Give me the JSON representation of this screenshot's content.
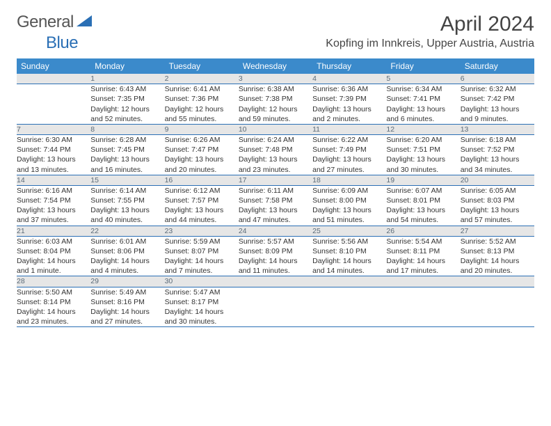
{
  "logo": {
    "text_general": "General",
    "text_blue": "Blue"
  },
  "title": "April 2024",
  "location": "Kopfing im Innkreis, Upper Austria, Austria",
  "colors": {
    "header_bg": "#3b8acb",
    "header_text": "#ffffff",
    "daynum_bg": "#e6e6e6",
    "daynum_text": "#5a6a78",
    "row_divider": "#2a6fb5",
    "logo_blue": "#2a6fb5",
    "logo_gray": "#555555",
    "page_bg": "#ffffff"
  },
  "day_headers": [
    "Sunday",
    "Monday",
    "Tuesday",
    "Wednesday",
    "Thursday",
    "Friday",
    "Saturday"
  ],
  "weeks": [
    [
      null,
      {
        "n": "1",
        "sr": "Sunrise: 6:43 AM",
        "ss": "Sunset: 7:35 PM",
        "dl1": "Daylight: 12 hours",
        "dl2": "and 52 minutes."
      },
      {
        "n": "2",
        "sr": "Sunrise: 6:41 AM",
        "ss": "Sunset: 7:36 PM",
        "dl1": "Daylight: 12 hours",
        "dl2": "and 55 minutes."
      },
      {
        "n": "3",
        "sr": "Sunrise: 6:38 AM",
        "ss": "Sunset: 7:38 PM",
        "dl1": "Daylight: 12 hours",
        "dl2": "and 59 minutes."
      },
      {
        "n": "4",
        "sr": "Sunrise: 6:36 AM",
        "ss": "Sunset: 7:39 PM",
        "dl1": "Daylight: 13 hours",
        "dl2": "and 2 minutes."
      },
      {
        "n": "5",
        "sr": "Sunrise: 6:34 AM",
        "ss": "Sunset: 7:41 PM",
        "dl1": "Daylight: 13 hours",
        "dl2": "and 6 minutes."
      },
      {
        "n": "6",
        "sr": "Sunrise: 6:32 AM",
        "ss": "Sunset: 7:42 PM",
        "dl1": "Daylight: 13 hours",
        "dl2": "and 9 minutes."
      }
    ],
    [
      {
        "n": "7",
        "sr": "Sunrise: 6:30 AM",
        "ss": "Sunset: 7:44 PM",
        "dl1": "Daylight: 13 hours",
        "dl2": "and 13 minutes."
      },
      {
        "n": "8",
        "sr": "Sunrise: 6:28 AM",
        "ss": "Sunset: 7:45 PM",
        "dl1": "Daylight: 13 hours",
        "dl2": "and 16 minutes."
      },
      {
        "n": "9",
        "sr": "Sunrise: 6:26 AM",
        "ss": "Sunset: 7:47 PM",
        "dl1": "Daylight: 13 hours",
        "dl2": "and 20 minutes."
      },
      {
        "n": "10",
        "sr": "Sunrise: 6:24 AM",
        "ss": "Sunset: 7:48 PM",
        "dl1": "Daylight: 13 hours",
        "dl2": "and 23 minutes."
      },
      {
        "n": "11",
        "sr": "Sunrise: 6:22 AM",
        "ss": "Sunset: 7:49 PM",
        "dl1": "Daylight: 13 hours",
        "dl2": "and 27 minutes."
      },
      {
        "n": "12",
        "sr": "Sunrise: 6:20 AM",
        "ss": "Sunset: 7:51 PM",
        "dl1": "Daylight: 13 hours",
        "dl2": "and 30 minutes."
      },
      {
        "n": "13",
        "sr": "Sunrise: 6:18 AM",
        "ss": "Sunset: 7:52 PM",
        "dl1": "Daylight: 13 hours",
        "dl2": "and 34 minutes."
      }
    ],
    [
      {
        "n": "14",
        "sr": "Sunrise: 6:16 AM",
        "ss": "Sunset: 7:54 PM",
        "dl1": "Daylight: 13 hours",
        "dl2": "and 37 minutes."
      },
      {
        "n": "15",
        "sr": "Sunrise: 6:14 AM",
        "ss": "Sunset: 7:55 PM",
        "dl1": "Daylight: 13 hours",
        "dl2": "and 40 minutes."
      },
      {
        "n": "16",
        "sr": "Sunrise: 6:12 AM",
        "ss": "Sunset: 7:57 PM",
        "dl1": "Daylight: 13 hours",
        "dl2": "and 44 minutes."
      },
      {
        "n": "17",
        "sr": "Sunrise: 6:11 AM",
        "ss": "Sunset: 7:58 PM",
        "dl1": "Daylight: 13 hours",
        "dl2": "and 47 minutes."
      },
      {
        "n": "18",
        "sr": "Sunrise: 6:09 AM",
        "ss": "Sunset: 8:00 PM",
        "dl1": "Daylight: 13 hours",
        "dl2": "and 51 minutes."
      },
      {
        "n": "19",
        "sr": "Sunrise: 6:07 AM",
        "ss": "Sunset: 8:01 PM",
        "dl1": "Daylight: 13 hours",
        "dl2": "and 54 minutes."
      },
      {
        "n": "20",
        "sr": "Sunrise: 6:05 AM",
        "ss": "Sunset: 8:03 PM",
        "dl1": "Daylight: 13 hours",
        "dl2": "and 57 minutes."
      }
    ],
    [
      {
        "n": "21",
        "sr": "Sunrise: 6:03 AM",
        "ss": "Sunset: 8:04 PM",
        "dl1": "Daylight: 14 hours",
        "dl2": "and 1 minute."
      },
      {
        "n": "22",
        "sr": "Sunrise: 6:01 AM",
        "ss": "Sunset: 8:06 PM",
        "dl1": "Daylight: 14 hours",
        "dl2": "and 4 minutes."
      },
      {
        "n": "23",
        "sr": "Sunrise: 5:59 AM",
        "ss": "Sunset: 8:07 PM",
        "dl1": "Daylight: 14 hours",
        "dl2": "and 7 minutes."
      },
      {
        "n": "24",
        "sr": "Sunrise: 5:57 AM",
        "ss": "Sunset: 8:09 PM",
        "dl1": "Daylight: 14 hours",
        "dl2": "and 11 minutes."
      },
      {
        "n": "25",
        "sr": "Sunrise: 5:56 AM",
        "ss": "Sunset: 8:10 PM",
        "dl1": "Daylight: 14 hours",
        "dl2": "and 14 minutes."
      },
      {
        "n": "26",
        "sr": "Sunrise: 5:54 AM",
        "ss": "Sunset: 8:11 PM",
        "dl1": "Daylight: 14 hours",
        "dl2": "and 17 minutes."
      },
      {
        "n": "27",
        "sr": "Sunrise: 5:52 AM",
        "ss": "Sunset: 8:13 PM",
        "dl1": "Daylight: 14 hours",
        "dl2": "and 20 minutes."
      }
    ],
    [
      {
        "n": "28",
        "sr": "Sunrise: 5:50 AM",
        "ss": "Sunset: 8:14 PM",
        "dl1": "Daylight: 14 hours",
        "dl2": "and 23 minutes."
      },
      {
        "n": "29",
        "sr": "Sunrise: 5:49 AM",
        "ss": "Sunset: 8:16 PM",
        "dl1": "Daylight: 14 hours",
        "dl2": "and 27 minutes."
      },
      {
        "n": "30",
        "sr": "Sunrise: 5:47 AM",
        "ss": "Sunset: 8:17 PM",
        "dl1": "Daylight: 14 hours",
        "dl2": "and 30 minutes."
      },
      null,
      null,
      null,
      null
    ]
  ]
}
